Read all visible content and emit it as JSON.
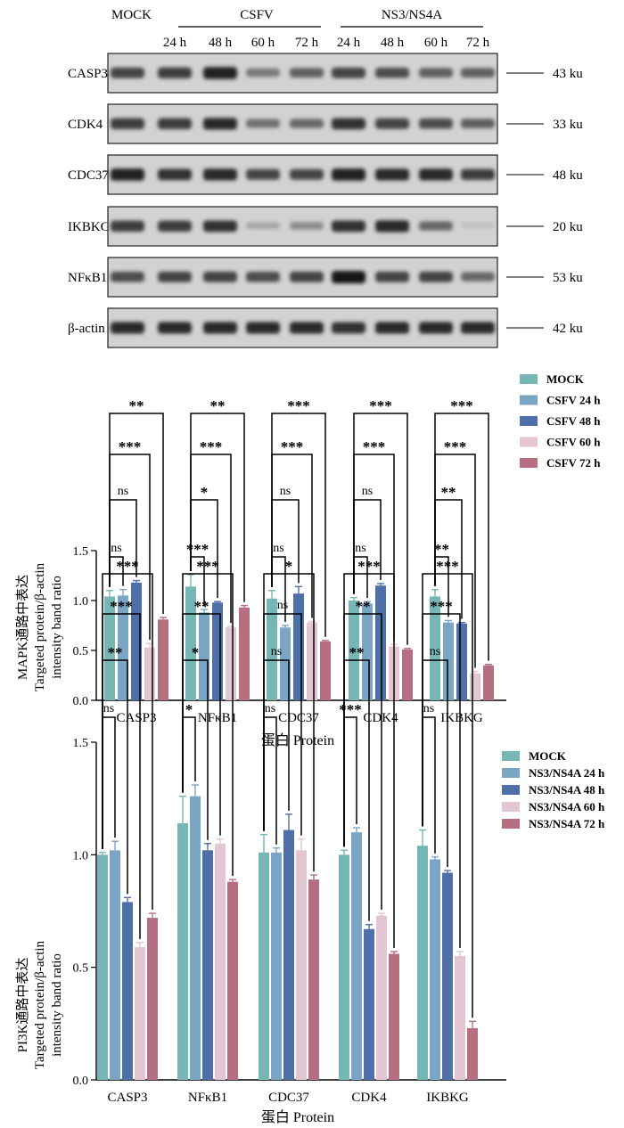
{
  "blot": {
    "top_labels": {
      "mock": "MOCK",
      "csfv": "CSFV",
      "ns3": "NS3/NS4A",
      "times": [
        "24 h",
        "48 h",
        "60 h",
        "72 h",
        "24 h",
        "48 h",
        "60 h",
        "72 h"
      ]
    },
    "rows": [
      {
        "protein": "CASP3",
        "size": "43 ku",
        "intensity": [
          0.75,
          0.8,
          0.95,
          0.45,
          0.6,
          0.75,
          0.7,
          0.6,
          0.6
        ]
      },
      {
        "protein": "CDK4",
        "size": "33 ku",
        "intensity": [
          0.8,
          0.8,
          0.9,
          0.5,
          0.55,
          0.85,
          0.75,
          0.7,
          0.6
        ]
      },
      {
        "protein": "CDC37",
        "size": "48 ku",
        "intensity": [
          0.95,
          0.85,
          0.9,
          0.75,
          0.75,
          0.95,
          0.9,
          0.9,
          0.8
        ]
      },
      {
        "protein": "IKBKG",
        "size": "20 ku",
        "intensity": [
          0.8,
          0.8,
          0.85,
          0.2,
          0.35,
          0.85,
          0.9,
          0.55,
          0.05
        ]
      },
      {
        "protein": "NFκB1",
        "size": "53 ku",
        "intensity": [
          0.7,
          0.75,
          0.75,
          0.7,
          0.75,
          1.0,
          0.75,
          0.75,
          0.55
        ]
      },
      {
        "protein": "β-actin",
        "size": "42 ku",
        "intensity": [
          0.9,
          0.9,
          0.9,
          0.9,
          0.9,
          0.85,
          0.9,
          0.9,
          0.9
        ]
      }
    ]
  },
  "chart_data": [
    {
      "type": "bar",
      "categories": [
        "CASP3",
        "NFκB1",
        "CDC37",
        "CDK4",
        "IKBKG"
      ],
      "series": [
        {
          "name": "MOCK",
          "color": "#76b6b4",
          "values": [
            1.04,
            1.14,
            1.02,
            1.0,
            1.04
          ],
          "errors": [
            0.06,
            0.12,
            0.08,
            0.03,
            0.07
          ]
        },
        {
          "name": "CSFV 24 h",
          "color": "#7ba5c4",
          "values": [
            1.05,
            0.88,
            0.73,
            0.97,
            0.78
          ],
          "errors": [
            0.06,
            0.03,
            0.02,
            0.02,
            0.02
          ]
        },
        {
          "name": "CSFV 48 h",
          "color": "#4e6fa8",
          "values": [
            1.18,
            0.98,
            1.07,
            1.15,
            0.77
          ],
          "errors": [
            0.02,
            0.01,
            0.07,
            0.02,
            0.01
          ]
        },
        {
          "name": "CSFV 60 h",
          "color": "#e4c5d3",
          "values": [
            0.53,
            0.73,
            0.78,
            0.54,
            0.27
          ],
          "errors": [
            0.04,
            0.01,
            0.01,
            0.02,
            0.02
          ]
        },
        {
          "name": "CSFV 72 h",
          "color": "#b66f80",
          "values": [
            0.81,
            0.93,
            0.59,
            0.51,
            0.35
          ],
          "errors": [
            0.02,
            0.02,
            0.01,
            0.01,
            0.01
          ]
        }
      ],
      "ylabel_lines": [
        "MAPK通路中表达",
        "Targeted protein/β-actin",
        "intensity band ratio"
      ],
      "xlabel": "蛋白  Protein",
      "yticks": [
        "0.0",
        "0.5",
        "1.0",
        "1.5"
      ],
      "ylim": [
        0,
        1.5
      ],
      "significance": [
        [
          "ns",
          "***",
          "ns",
          "ns",
          "**"
        ],
        [
          "ns",
          "*",
          "ns",
          "ns",
          "**"
        ],
        [
          "***",
          "***",
          "***",
          "***",
          "***"
        ],
        [
          "**",
          "**",
          "***",
          "***",
          "***"
        ]
      ]
    },
    {
      "type": "bar",
      "categories": [
        "CASP3",
        "NFκB1",
        "CDC37",
        "CDK4",
        "IKBKG"
      ],
      "series": [
        {
          "name": "MOCK",
          "color": "#76b6b4",
          "values": [
            1.0,
            1.14,
            1.01,
            1.0,
            1.04
          ],
          "errors": [
            0.01,
            0.12,
            0.08,
            0.02,
            0.07
          ]
        },
        {
          "name": "NS3/NS4A 24 h",
          "color": "#7ba5c4",
          "values": [
            1.02,
            1.26,
            1.01,
            1.1,
            0.98
          ],
          "errors": [
            0.04,
            0.05,
            0.02,
            0.02,
            0.01
          ]
        },
        {
          "name": "NS3/NS4A 48 h",
          "color": "#4e6fa8",
          "values": [
            0.79,
            1.02,
            1.11,
            0.67,
            0.92
          ],
          "errors": [
            0.02,
            0.03,
            0.07,
            0.02,
            0.01
          ]
        },
        {
          "name": "NS3/NS4A 60 h",
          "color": "#e4c5d3",
          "values": [
            0.59,
            1.05,
            1.02,
            0.73,
            0.55
          ],
          "errors": [
            0.02,
            0.02,
            0.05,
            0.01,
            0.02
          ]
        },
        {
          "name": "NS3/NS4A 72 h",
          "color": "#b66f80",
          "values": [
            0.72,
            0.88,
            0.89,
            0.56,
            0.23
          ],
          "errors": [
            0.02,
            0.01,
            0.02,
            0.01,
            0.03
          ]
        }
      ],
      "ylabel_lines": [
        "PI3K通路中表达",
        "Targeted protein/β-actin",
        "intensity band ratio"
      ],
      "xlabel": "蛋白  Protein",
      "yticks": [
        "0.0",
        "0.5",
        "1.0",
        "1.5"
      ],
      "ylim": [
        0,
        1.5
      ],
      "significance": [
        [
          "ns",
          "*",
          "ns",
          "***",
          "ns"
        ],
        [
          "**",
          "*",
          "ns",
          "**",
          "ns"
        ],
        [
          "***",
          "**",
          "ns",
          "**",
          "***"
        ],
        [
          "***",
          "***",
          "*",
          "***",
          "***"
        ]
      ]
    }
  ]
}
